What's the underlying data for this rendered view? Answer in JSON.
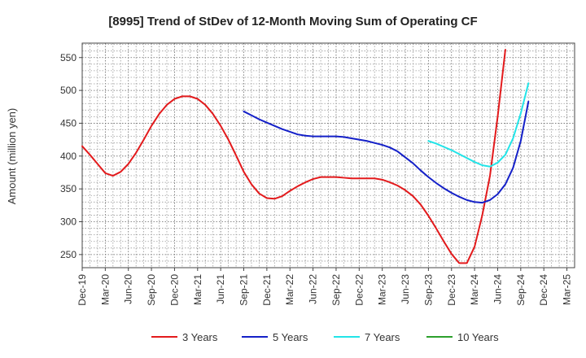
{
  "chart_data": {
    "type": "line",
    "title": "[8995]  Trend of StDev of 12-Month Moving Sum of Operating CF",
    "ylabel": "Amount (million yen)",
    "xlabel": "",
    "ylim": [
      230,
      572
    ],
    "yticks": [
      250,
      300,
      350,
      400,
      450,
      500,
      550
    ],
    "x_tick_labels": [
      "Dec-19",
      "Mar-20",
      "Jun-20",
      "Sep-20",
      "Dec-20",
      "Mar-21",
      "Jun-21",
      "Sep-21",
      "Dec-21",
      "Mar-22",
      "Jun-22",
      "Sep-22",
      "Dec-22",
      "Mar-23",
      "Jun-23",
      "Sep-23",
      "Dec-23",
      "Mar-24",
      "Jun-24",
      "Sep-24",
      "Dec-24",
      "Mar-25"
    ],
    "x_months": 64,
    "grid": true,
    "legend_position": "bottom",
    "series": [
      {
        "name": "3 Years",
        "color": "#e31a1c",
        "start_month": 0,
        "values": [
          415,
          402,
          388,
          374,
          370,
          376,
          388,
          405,
          425,
          446,
          464,
          478,
          487,
          491,
          491,
          487,
          478,
          464,
          446,
          425,
          401,
          376,
          357,
          343,
          336,
          335,
          339,
          347,
          354,
          360,
          365,
          368,
          368,
          368,
          367,
          366,
          366,
          366,
          366,
          364,
          360,
          355,
          348,
          339,
          326,
          309,
          290,
          270,
          251,
          237,
          237,
          262,
          310,
          370,
          460,
          562
        ]
      },
      {
        "name": "5 Years",
        "color": "#1420c8",
        "start_month": 21,
        "values": [
          468,
          462,
          456,
          451,
          446,
          441,
          437,
          433,
          431,
          430,
          430,
          430,
          430,
          429,
          427,
          425,
          423,
          420,
          417,
          413,
          407,
          398,
          389,
          378,
          368,
          359,
          351,
          344,
          338,
          333,
          330,
          329,
          333,
          342,
          357,
          382,
          423,
          483
        ]
      },
      {
        "name": "7 Years",
        "color": "#22e4e8",
        "start_month": 45,
        "values": [
          423,
          419,
          414,
          409,
          403,
          397,
          391,
          386,
          384,
          390,
          402,
          427,
          465,
          511
        ]
      },
      {
        "name": "10 Years",
        "color": "#2ca02c",
        "start_month": 0,
        "values": []
      }
    ]
  }
}
